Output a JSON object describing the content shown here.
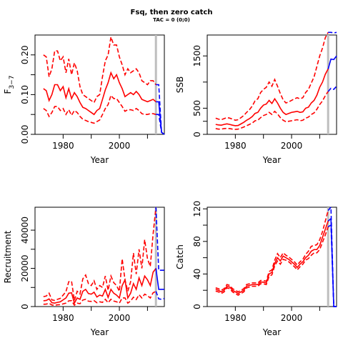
{
  "title": "Fsq, then zero catch",
  "subtitle": "TAC = 0 (0;0)",
  "colors": {
    "historical": "#ff0000",
    "projection": "#0000ff",
    "vline": "#bebebe",
    "axis": "#000000"
  },
  "chart_data": [
    {
      "id": "fbar",
      "type": "line",
      "title": "",
      "xlabel": "Year",
      "ylabel": "F",
      "ylabel_sub": "3−7",
      "xlim": [
        1970,
        2016
      ],
      "ylim": [
        0,
        0.25
      ],
      "xticks": [
        1980,
        2000
      ],
      "yticks": [
        0.0,
        0.1,
        0.2
      ],
      "ytick_labels": [
        "0.00",
        "0.10",
        "0.20"
      ],
      "vline_x": 2013,
      "x": [
        1973,
        1974,
        1975,
        1976,
        1977,
        1978,
        1979,
        1980,
        1981,
        1982,
        1983,
        1984,
        1985,
        1986,
        1987,
        1988,
        1989,
        1990,
        1991,
        1992,
        1993,
        1994,
        1995,
        1996,
        1997,
        1998,
        1999,
        2000,
        2001,
        2002,
        2003,
        2004,
        2005,
        2006,
        2007,
        2008,
        2009,
        2010,
        2011,
        2012,
        2013
      ],
      "series": [
        {
          "kind": "median",
          "values": [
            0.115,
            0.11,
            0.085,
            0.1,
            0.125,
            0.125,
            0.11,
            0.12,
            0.092,
            0.115,
            0.09,
            0.105,
            0.095,
            0.08,
            0.068,
            0.065,
            0.06,
            0.055,
            0.05,
            0.06,
            0.065,
            0.088,
            0.112,
            0.13,
            0.155,
            0.14,
            0.15,
            0.13,
            0.115,
            0.095,
            0.1,
            0.105,
            0.1,
            0.108,
            0.1,
            0.088,
            0.085,
            0.082,
            0.085,
            0.088,
            0.082
          ]
        },
        {
          "kind": "upper",
          "values": [
            0.2,
            0.195,
            0.145,
            0.165,
            0.21,
            0.21,
            0.185,
            0.195,
            0.155,
            0.19,
            0.15,
            0.18,
            0.16,
            0.12,
            0.1,
            0.095,
            0.09,
            0.085,
            0.08,
            0.095,
            0.1,
            0.145,
            0.185,
            0.2,
            0.245,
            0.225,
            0.225,
            0.195,
            0.175,
            0.15,
            0.165,
            0.155,
            0.16,
            0.165,
            0.155,
            0.135,
            0.13,
            0.125,
            0.135,
            0.135,
            0.125
          ]
        },
        {
          "kind": "lower",
          "values": [
            0.065,
            0.06,
            0.045,
            0.055,
            0.07,
            0.07,
            0.06,
            0.065,
            0.05,
            0.062,
            0.048,
            0.06,
            0.055,
            0.045,
            0.038,
            0.035,
            0.032,
            0.03,
            0.028,
            0.032,
            0.036,
            0.05,
            0.065,
            0.075,
            0.098,
            0.09,
            0.09,
            0.08,
            0.07,
            0.058,
            0.062,
            0.062,
            0.06,
            0.065,
            0.06,
            0.052,
            0.05,
            0.05,
            0.052,
            0.052,
            0.05
          ]
        }
      ],
      "projection": {
        "x": [
          2013,
          2014,
          2015,
          2016
        ],
        "median": [
          0.082,
          0.082,
          0.005,
          0.0
        ],
        "upper": [
          0.125,
          0.125,
          0.005,
          0.0
        ],
        "lower": [
          0.05,
          0.05,
          0.005,
          0.0
        ]
      }
    },
    {
      "id": "ssb",
      "type": "line",
      "title": "",
      "xlabel": "Year",
      "ylabel": "SSB",
      "xlim": [
        1970,
        2016
      ],
      "ylim": [
        0,
        1900
      ],
      "xticks": [
        1980,
        2000
      ],
      "yticks": [
        0,
        500,
        1500
      ],
      "ytick_labels": [
        "0",
        "500",
        "1500"
      ],
      "vline_x": 2013,
      "x": [
        1973,
        1974,
        1975,
        1976,
        1977,
        1978,
        1979,
        1980,
        1981,
        1982,
        1983,
        1984,
        1985,
        1986,
        1987,
        1988,
        1989,
        1990,
        1991,
        1992,
        1993,
        1994,
        1995,
        1996,
        1997,
        1998,
        1999,
        2000,
        2001,
        2002,
        2003,
        2004,
        2005,
        2006,
        2007,
        2008,
        2009,
        2010,
        2011,
        2012,
        2013
      ],
      "series": [
        {
          "kind": "median",
          "values": [
            190,
            180,
            175,
            190,
            200,
            190,
            175,
            165,
            170,
            200,
            230,
            270,
            300,
            340,
            400,
            420,
            500,
            560,
            580,
            650,
            590,
            680,
            600,
            500,
            420,
            380,
            400,
            420,
            430,
            440,
            420,
            430,
            500,
            520,
            600,
            650,
            750,
            900,
            1000,
            1150,
            1250
          ]
        },
        {
          "kind": "upper",
          "values": [
            310,
            290,
            280,
            300,
            320,
            310,
            290,
            270,
            280,
            320,
            360,
            420,
            470,
            540,
            640,
            680,
            800,
            860,
            900,
            1000,
            920,
            1050,
            920,
            780,
            660,
            600,
            620,
            650,
            680,
            700,
            680,
            700,
            800,
            860,
            980,
            1100,
            1300,
            1500,
            1650,
            1850,
            1950
          ]
        },
        {
          "kind": "lower",
          "values": [
            110,
            100,
            100,
            110,
            115,
            110,
            100,
            95,
            100,
            120,
            140,
            165,
            190,
            215,
            260,
            270,
            320,
            360,
            380,
            420,
            380,
            440,
            390,
            320,
            270,
            240,
            250,
            260,
            270,
            280,
            260,
            270,
            310,
            330,
            380,
            410,
            480,
            570,
            640,
            740,
            820
          ]
        }
      ],
      "projection": {
        "x": [
          2013,
          2014,
          2015,
          2016
        ],
        "median": [
          1250,
          1440,
          1430,
          1500
        ],
        "upper": [
          1950,
          1950,
          1940,
          1950
        ],
        "lower": [
          820,
          880,
          860,
          920
        ]
      }
    },
    {
      "id": "recruitment",
      "type": "line",
      "title": "",
      "xlabel": "Year",
      "ylabel": "Recruitment",
      "xlim": [
        1970,
        2016
      ],
      "ylim": [
        0,
        52000
      ],
      "xticks": [
        1980,
        2000
      ],
      "yticks": [
        0,
        20000,
        40000
      ],
      "ytick_labels": [
        "0",
        "20000",
        "40000"
      ],
      "vline_x": 2013,
      "x": [
        1973,
        1974,
        1975,
        1976,
        1977,
        1978,
        1979,
        1980,
        1981,
        1982,
        1983,
        1984,
        1985,
        1986,
        1987,
        1988,
        1989,
        1990,
        1991,
        1992,
        1993,
        1994,
        1995,
        1996,
        1997,
        1998,
        1999,
        2000,
        2001,
        2002,
        2003,
        2004,
        2005,
        2006,
        2007,
        2008,
        2009,
        2010,
        2011,
        2012,
        2013
      ],
      "series": [
        {
          "kind": "median",
          "values": [
            3000,
            3200,
            4000,
            2000,
            1800,
            2200,
            2500,
            3500,
            4500,
            7000,
            7200,
            1800,
            4500,
            3800,
            8000,
            9000,
            6800,
            6500,
            7500,
            5000,
            6000,
            5500,
            9000,
            4800,
            9000,
            7000,
            6000,
            4500,
            11000,
            14000,
            4500,
            7000,
            12000,
            9000,
            15000,
            11000,
            16000,
            14000,
            11000,
            18000,
            20000
          ]
        },
        {
          "kind": "upper",
          "values": [
            5200,
            5500,
            7000,
            3500,
            3200,
            3800,
            4300,
            6000,
            7800,
            13000,
            13200,
            3200,
            8000,
            6600,
            14500,
            16500,
            12000,
            11000,
            13500,
            9000,
            11000,
            10000,
            16000,
            8500,
            16000,
            12500,
            11000,
            8000,
            25000,
            14000,
            8000,
            13000,
            28000,
            17000,
            30000,
            20000,
            35000,
            25000,
            21000,
            38000,
            52000
          ]
        },
        {
          "kind": "lower",
          "values": [
            1200,
            1300,
            1700,
            800,
            700,
            900,
            1000,
            1400,
            1800,
            3000,
            3100,
            700,
            1800,
            1500,
            3400,
            3800,
            2800,
            2700,
            3100,
            2000,
            2500,
            2200,
            3800,
            2000,
            3800,
            2900,
            2500,
            1800,
            4500,
            4500,
            1800,
            2900,
            4900,
            3700,
            6200,
            4500,
            6500,
            5700,
            4500,
            7200,
            8000
          ]
        }
      ],
      "projection": {
        "x": [
          2013,
          2014,
          2015,
          2016
        ],
        "median": [
          20000,
          9000,
          9000,
          9000
        ],
        "upper": [
          52000,
          19000,
          19000,
          19000
        ],
        "lower": [
          8000,
          4000,
          3800,
          4200
        ]
      }
    },
    {
      "id": "catch",
      "type": "line",
      "title": "",
      "xlabel": "Year",
      "ylabel": "Catch",
      "xlim": [
        1970,
        2016
      ],
      "ylim": [
        0,
        122
      ],
      "xticks": [
        1980,
        2000
      ],
      "yticks": [
        0,
        40,
        80,
        120
      ],
      "ytick_labels": [
        "0",
        "40",
        "80",
        "120"
      ],
      "vline_x": 2013,
      "x": [
        1973,
        1974,
        1975,
        1976,
        1977,
        1978,
        1979,
        1980,
        1981,
        1982,
        1983,
        1984,
        1985,
        1986,
        1987,
        1988,
        1989,
        1990,
        1991,
        1992,
        1993,
        1994,
        1995,
        1996,
        1997,
        1998,
        1999,
        2000,
        2001,
        2002,
        2003,
        2004,
        2005,
        2006,
        2007,
        2008,
        2009,
        2010,
        2011,
        2012,
        2013
      ],
      "series": [
        {
          "kind": "median",
          "values": [
            21,
            20,
            18,
            20,
            25,
            24,
            20,
            18,
            16,
            18,
            20,
            25,
            26,
            27,
            27,
            27,
            30,
            30,
            29,
            40,
            42,
            53,
            60,
            56,
            62,
            60,
            58,
            55,
            52,
            48,
            52,
            55,
            60,
            63,
            68,
            70,
            70,
            75,
            85,
            95,
            105
          ]
        },
        {
          "kind": "upper",
          "values": [
            23,
            22,
            20,
            22,
            27,
            26,
            22,
            20,
            18,
            20,
            22,
            27,
            28,
            29,
            29,
            29,
            32,
            32,
            31,
            43,
            45,
            57,
            65,
            60,
            66,
            63,
            61,
            58,
            55,
            51,
            55,
            58,
            64,
            68,
            74,
            75,
            76,
            82,
            92,
            105,
            118
          ]
        },
        {
          "kind": "lower",
          "values": [
            19,
            18,
            16,
            18,
            23,
            22,
            18,
            16,
            14,
            16,
            18,
            23,
            24,
            25,
            25,
            25,
            28,
            28,
            27,
            37,
            39,
            50,
            56,
            52,
            58,
            57,
            55,
            52,
            49,
            45,
            49,
            52,
            57,
            59,
            63,
            66,
            66,
            70,
            79,
            88,
            98
          ]
        }
      ],
      "projection": {
        "x": [
          2013,
          2014,
          2015,
          2016
        ],
        "median": [
          105,
          108,
          0,
          0
        ],
        "upper": [
          118,
          122,
          0,
          0
        ],
        "lower": [
          98,
          100,
          0,
          0
        ]
      }
    }
  ]
}
